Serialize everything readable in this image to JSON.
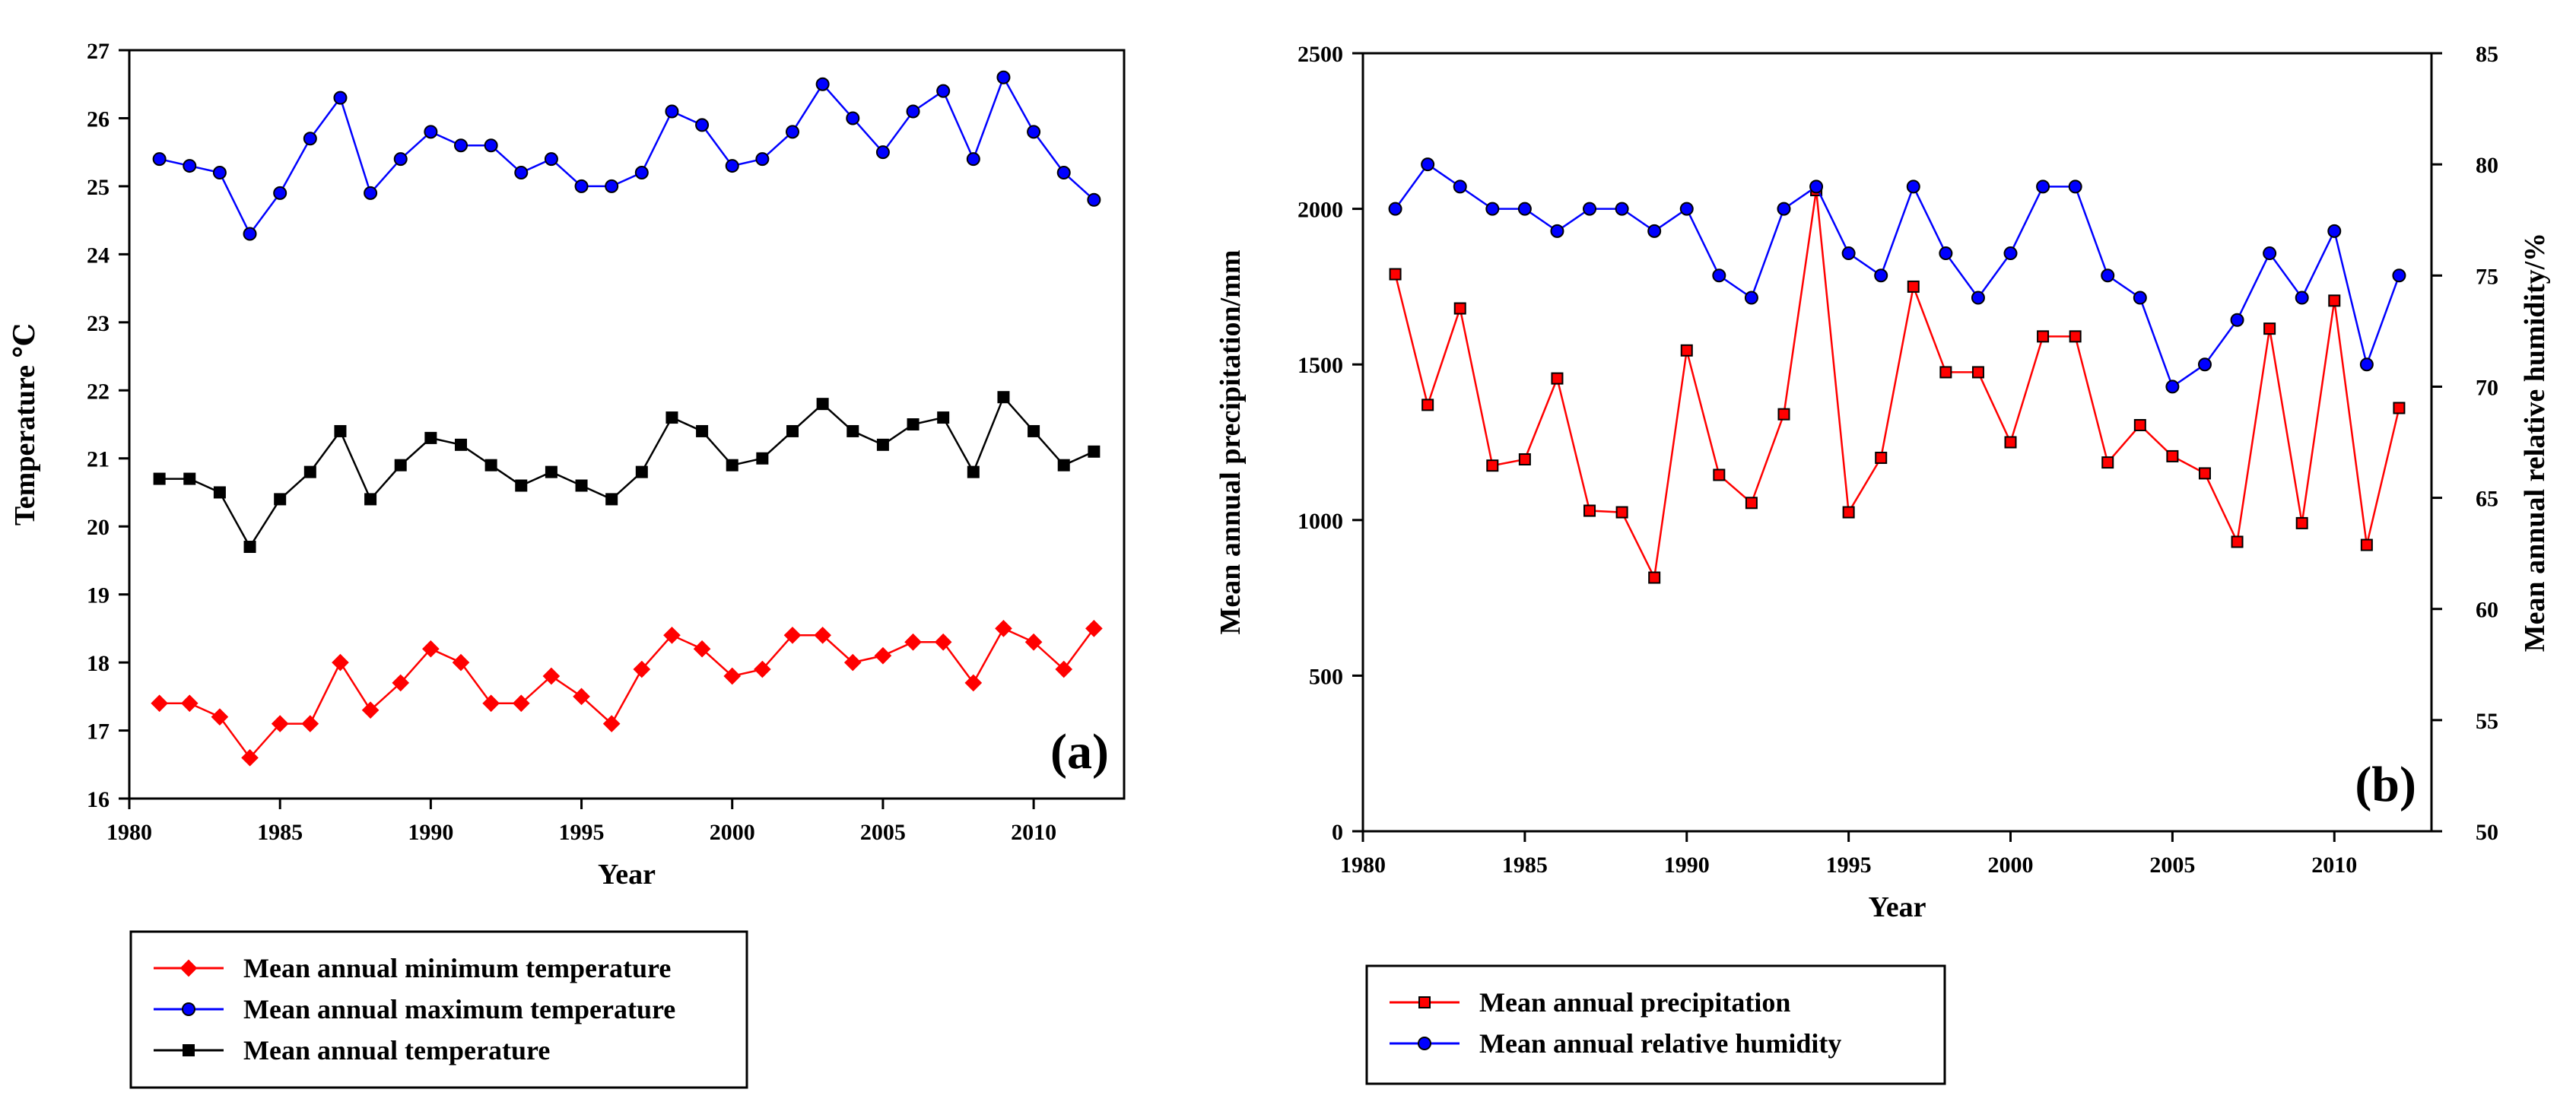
{
  "chart_data": [
    {
      "type": "line",
      "panel_label": "(a)",
      "xlabel": "Year",
      "ylabel": "Temperature ℃",
      "xlim": [
        1980,
        2013
      ],
      "ylim": [
        16,
        27
      ],
      "xticks": [
        1980,
        1985,
        1990,
        1995,
        2000,
        2005,
        2010
      ],
      "yticks": [
        16,
        17,
        18,
        19,
        20,
        21,
        22,
        23,
        24,
        25,
        26,
        27
      ],
      "grid": false,
      "legend_position": "below",
      "x": [
        1981,
        1982,
        1983,
        1984,
        1985,
        1986,
        1987,
        1988,
        1989,
        1990,
        1991,
        1992,
        1993,
        1994,
        1995,
        1996,
        1997,
        1998,
        1999,
        2000,
        2001,
        2002,
        2003,
        2004,
        2005,
        2006,
        2007,
        2008,
        2009,
        2010,
        2011,
        2012
      ],
      "series": [
        {
          "name": "Mean annual minimum temperature",
          "color": "#ff0000",
          "marker": "diamond",
          "axis": "left",
          "values": [
            17.4,
            17.4,
            17.2,
            16.6,
            17.1,
            17.1,
            18.0,
            17.3,
            17.7,
            18.2,
            18.0,
            17.4,
            17.4,
            17.8,
            17.5,
            17.1,
            17.9,
            18.4,
            18.2,
            17.8,
            17.9,
            18.4,
            18.4,
            18.0,
            18.1,
            18.3,
            18.3,
            17.7,
            18.5,
            18.3,
            17.9,
            18.5
          ]
        },
        {
          "name": "Mean annual maximum temperature",
          "color": "#0000ff",
          "marker": "circle",
          "axis": "left",
          "values": [
            25.4,
            25.3,
            25.2,
            24.3,
            24.9,
            25.7,
            26.3,
            24.9,
            25.4,
            25.8,
            25.6,
            25.6,
            25.2,
            25.4,
            25.0,
            25.0,
            25.2,
            26.1,
            25.9,
            25.3,
            25.4,
            25.8,
            26.5,
            26.0,
            25.5,
            26.1,
            26.4,
            25.4,
            26.6,
            25.8,
            25.2,
            24.8
          ]
        },
        {
          "name": "Mean annual temperature",
          "color": "#000000",
          "marker": "square",
          "axis": "left",
          "values": [
            20.7,
            20.7,
            20.5,
            19.7,
            20.4,
            20.8,
            21.4,
            20.4,
            20.9,
            21.3,
            21.2,
            20.9,
            20.6,
            20.8,
            20.6,
            20.4,
            20.8,
            21.6,
            21.4,
            20.9,
            21.0,
            21.4,
            21.8,
            21.4,
            21.2,
            21.5,
            21.6,
            20.8,
            21.9,
            21.4,
            20.9,
            21.1
          ]
        }
      ]
    },
    {
      "type": "line",
      "panel_label": "(b)",
      "xlabel": "Year",
      "ylabel": "Mean annual precipitation/mm",
      "ylabel_right": "Mean annual relative humidity/%",
      "xlim": [
        1980,
        2013
      ],
      "ylim": [
        0,
        2500
      ],
      "ylim_right": [
        50,
        85
      ],
      "xticks": [
        1980,
        1985,
        1990,
        1995,
        2000,
        2005,
        2010
      ],
      "yticks": [
        0,
        500,
        1000,
        1500,
        2000,
        2500
      ],
      "yticks_right": [
        50,
        55,
        60,
        65,
        70,
        75,
        80,
        85
      ],
      "grid": false,
      "legend_position": "below",
      "x": [
        1981,
        1982,
        1983,
        1984,
        1985,
        1986,
        1987,
        1988,
        1989,
        1990,
        1991,
        1992,
        1993,
        1994,
        1995,
        1996,
        1997,
        1998,
        1999,
        2000,
        2001,
        2002,
        2003,
        2004,
        2005,
        2006,
        2007,
        2008,
        2009,
        2010,
        2011,
        2012
      ],
      "series": [
        {
          "name": "Mean annual precipitation",
          "color": "#ff0000",
          "marker": "square",
          "axis": "left",
          "values": [
            1790,
            1370,
            1680,
            1175,
            1195,
            1455,
            1030,
            1025,
            815,
            1545,
            1145,
            1055,
            1340,
            2060,
            1025,
            1200,
            1750,
            1475,
            1475,
            1250,
            1590,
            1590,
            1185,
            1305,
            1205,
            1150,
            930,
            1615,
            990,
            1705,
            920,
            1360
          ]
        },
        {
          "name": "Mean annual relative humidity",
          "color": "#0000ff",
          "marker": "circle",
          "axis": "right",
          "values": [
            78,
            80,
            79,
            78,
            78,
            77,
            78,
            78,
            77,
            78,
            75,
            74,
            78,
            79,
            76,
            75,
            79,
            76,
            74,
            76,
            79,
            79,
            75,
            74,
            70,
            71,
            73,
            76,
            74,
            77,
            71,
            75
          ]
        }
      ]
    }
  ]
}
